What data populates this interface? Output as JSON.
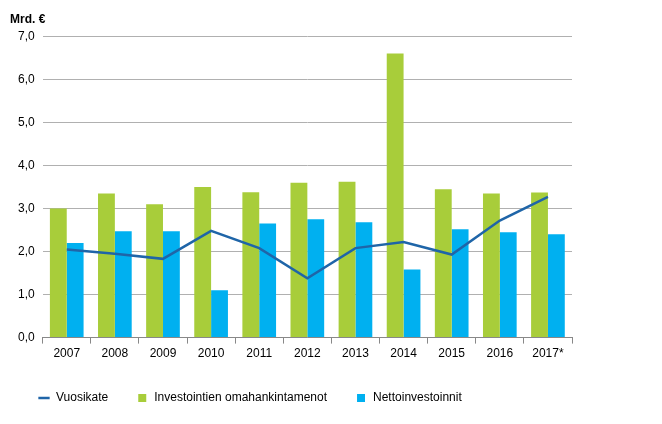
{
  "chart_data": {
    "type": "bar",
    "y_label": "Mrd. €",
    "categories": [
      "2007",
      "2008",
      "2009",
      "2010",
      "2011",
      "2012",
      "2013",
      "2014",
      "2015",
      "2016",
      "2017*"
    ],
    "series": [
      {
        "name": "Investointien omahankintamenot",
        "type": "bar",
        "color": "#a8cd3a",
        "values": [
          3.0,
          3.35,
          3.1,
          3.5,
          3.38,
          3.6,
          3.62,
          6.6,
          3.45,
          3.35,
          3.37
        ]
      },
      {
        "name": "Nettoinvestoinnit",
        "type": "bar",
        "color": "#00b0f0",
        "values": [
          2.2,
          2.47,
          2.47,
          1.1,
          2.65,
          2.75,
          2.68,
          1.58,
          2.52,
          2.45,
          2.4
        ]
      },
      {
        "name": "Vuosikate",
        "type": "line",
        "color": "#1f65a8",
        "values": [
          2.05,
          1.95,
          1.83,
          2.48,
          2.08,
          1.38,
          2.08,
          2.22,
          1.93,
          2.72,
          3.27
        ]
      }
    ],
    "ylim": [
      0,
      7
    ],
    "yticks": [
      {
        "value": 0,
        "label": "0,0"
      },
      {
        "value": 1,
        "label": "1,0"
      },
      {
        "value": 2,
        "label": "2,0"
      },
      {
        "value": 3,
        "label": "3,0"
      },
      {
        "value": 4,
        "label": "4,0"
      },
      {
        "value": 5,
        "label": "5,0"
      },
      {
        "value": 6,
        "label": "6,0"
      },
      {
        "value": 7,
        "label": "7,0"
      }
    ],
    "grid": true,
    "legend": "bottom"
  }
}
